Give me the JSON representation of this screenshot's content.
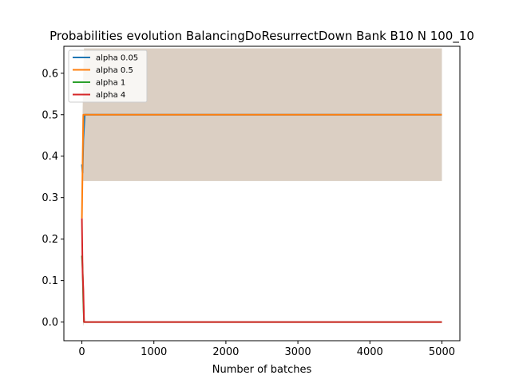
{
  "chart_data": {
    "type": "line",
    "title": "Probabilities evolution BalancingDoResurrectDown Bank B10 N 100_10",
    "xlabel": "Number of batches",
    "ylabel": "",
    "xlim": [
      -250,
      5250
    ],
    "ylim": [
      -0.045,
      0.665
    ],
    "xticks": [
      0,
      1000,
      2000,
      3000,
      4000,
      5000
    ],
    "yticks": [
      0.0,
      0.1,
      0.2,
      0.3,
      0.4,
      0.5,
      0.6
    ],
    "legend_position": "top-left",
    "grid": false,
    "series": [
      {
        "name": "alpha 0.05",
        "color": "#1f77b4",
        "x": [
          0,
          10,
          20,
          30,
          40,
          50,
          5000
        ],
        "y": [
          0.38,
          0.36,
          0.44,
          0.47,
          0.5,
          0.5,
          0.5
        ],
        "band": {
          "x": [
            0,
            10,
            20,
            30,
            50,
            5000
          ],
          "lower": [
            0.38,
            0.34,
            0.34,
            0.34,
            0.34,
            0.34
          ],
          "upper": [
            0.38,
            0.5,
            0.6,
            0.66,
            0.66,
            0.66
          ]
        }
      },
      {
        "name": "alpha 0.5",
        "color": "#ff7f0e",
        "x": [
          0,
          10,
          20,
          30,
          50,
          5000
        ],
        "y": [
          0.25,
          0.38,
          0.5,
          0.5,
          0.5,
          0.5
        ],
        "band": {
          "x": [
            0,
            10,
            20,
            30,
            50,
            5000
          ],
          "lower": [
            0.25,
            0.22,
            0.34,
            0.34,
            0.34,
            0.34
          ],
          "upper": [
            0.25,
            0.5,
            0.62,
            0.66,
            0.66,
            0.66
          ]
        }
      },
      {
        "name": "alpha 1",
        "color": "#2ca02c",
        "x": [
          0,
          10,
          20,
          30,
          50,
          5000
        ],
        "y": [
          0.16,
          0.13,
          0.05,
          0.0,
          0.0,
          0.0
        ],
        "band": {
          "x": [
            0,
            10,
            20,
            30,
            50,
            5000
          ],
          "lower": [
            0.16,
            0.05,
            -0.01,
            0.0,
            0.0,
            0.0
          ],
          "upper": [
            0.16,
            0.2,
            0.1,
            0.0,
            0.0,
            0.0
          ]
        }
      },
      {
        "name": "alpha 4",
        "color": "#d62728",
        "x": [
          0,
          10,
          20,
          30,
          50,
          5000
        ],
        "y": [
          0.25,
          0.12,
          0.08,
          0.0,
          0.0,
          0.0
        ],
        "band": {
          "x": [
            0,
            10,
            20,
            30,
            50,
            5000
          ],
          "lower": [
            0.25,
            0.05,
            -0.01,
            0.0,
            0.0,
            0.0
          ],
          "upper": [
            0.25,
            0.2,
            0.12,
            0.0,
            0.0,
            0.0
          ]
        }
      }
    ]
  }
}
